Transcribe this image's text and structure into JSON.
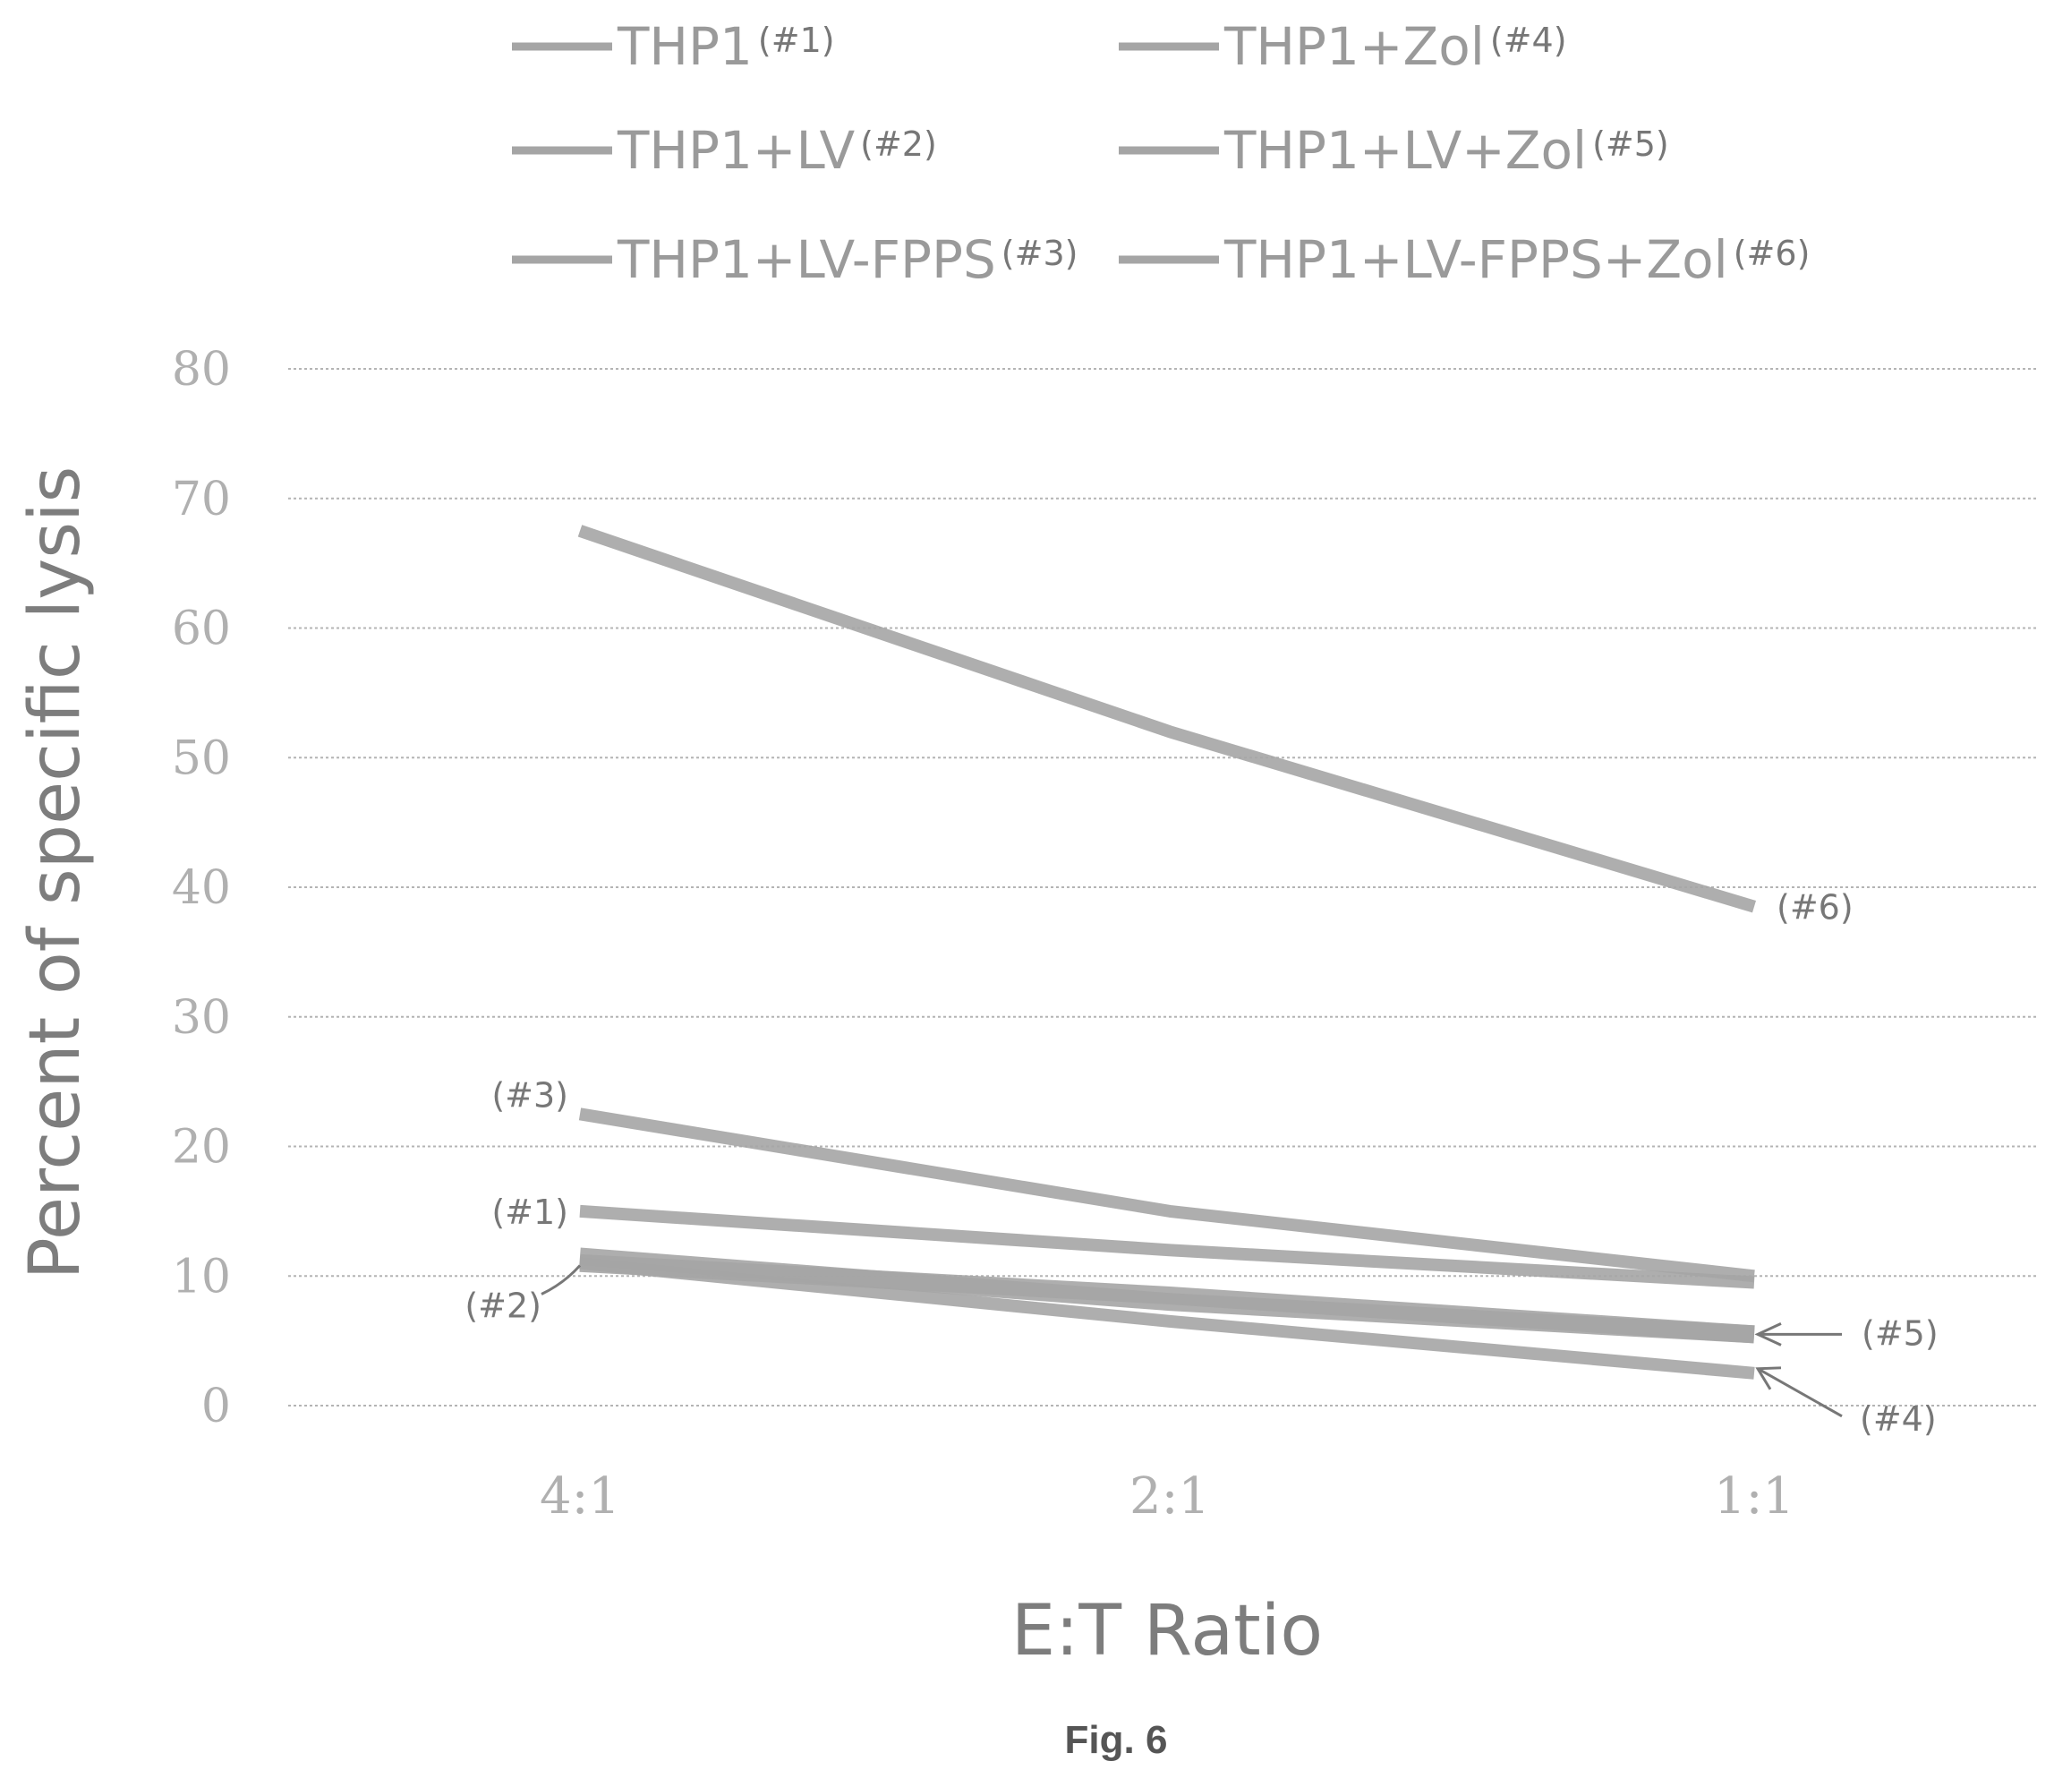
{
  "figure_label": "Fig. 6",
  "colors": {
    "series": "#a5a5a5",
    "grid": "#b4b4b4",
    "annotation": "#777777"
  },
  "chart_data": {
    "type": "line",
    "title": "",
    "xlabel": "E:T Ratio",
    "ylabel": "Percent of specific lysis",
    "categories": [
      "4:1",
      "2:1",
      "1:1"
    ],
    "ylim": [
      0,
      80
    ],
    "yticks": [
      0,
      10,
      20,
      30,
      40,
      50,
      60,
      70,
      80
    ],
    "grid": true,
    "legend_position": "top",
    "series": [
      {
        "name": "THP1",
        "tag": "(#1)",
        "values": [
          15,
          12,
          9.5
        ]
      },
      {
        "name": "THP1+LV",
        "tag": "(#2)",
        "values": [
          11.5,
          8,
          5.5
        ]
      },
      {
        "name": "THP1+LV-FPPS",
        "tag": "(#3)",
        "values": [
          22.5,
          15,
          10
        ]
      },
      {
        "name": "THP1+Zol",
        "tag": "(#4)",
        "values": [
          11,
          6.5,
          2.5
        ]
      },
      {
        "name": "THP1+LV+Zol",
        "tag": "(#5)",
        "values": [
          11,
          8.5,
          5.5
        ]
      },
      {
        "name": "THP1+LV-FPPS+Zol",
        "tag": "(#6)",
        "values": [
          67.5,
          52,
          38.5
        ]
      }
    ],
    "annotations": [
      {
        "label": "(#6)",
        "series": 5
      },
      {
        "label": "(#3)",
        "series": 2
      },
      {
        "label": "(#1)",
        "series": 0
      },
      {
        "label": "(#2)",
        "series": 1
      },
      {
        "label": "(#5)",
        "series": 4
      },
      {
        "label": "(#4)",
        "series": 3
      }
    ]
  }
}
